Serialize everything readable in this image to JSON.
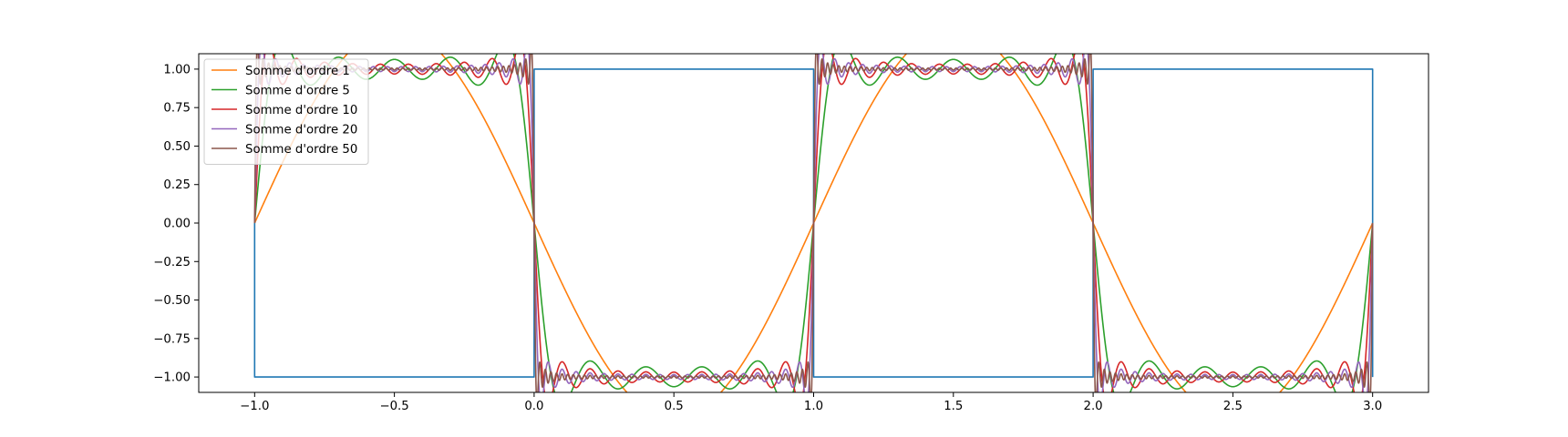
{
  "chart_data": {
    "type": "line",
    "title": "",
    "xlabel": "",
    "ylabel": "",
    "xlim": [
      -1.2,
      3.2
    ],
    "ylim": [
      -1.1,
      1.1
    ],
    "xticks": [
      -1.0,
      -0.5,
      0.0,
      0.5,
      1.0,
      1.5,
      2.0,
      2.5,
      3.0
    ],
    "xtick_labels": [
      "−1.0",
      "−0.5",
      "0.0",
      "0.5",
      "1.0",
      "1.5",
      "2.0",
      "2.5",
      "3.0"
    ],
    "yticks": [
      1.0,
      0.75,
      0.5,
      0.25,
      0.0,
      -0.25,
      -0.5,
      -0.75,
      -1.0
    ],
    "ytick_labels": [
      "1.00",
      "0.75",
      "0.50",
      "0.25",
      "0.00",
      "−0.25",
      "−0.50",
      "−0.75",
      "−1.00"
    ],
    "grid": false,
    "legend_position": "top-left",
    "x_domain": [
      -1.0,
      3.0
    ],
    "series": [
      {
        "kind": "square",
        "color": "#1f77b4",
        "points": [
          [
            -1.0,
            0.0
          ],
          [
            -1.0,
            -1.0
          ],
          [
            0.0,
            -1.0
          ],
          [
            0.0,
            1.0
          ],
          [
            1.0,
            1.0
          ],
          [
            1.0,
            -1.0
          ],
          [
            2.0,
            -1.0
          ],
          [
            2.0,
            1.0
          ],
          [
            3.0,
            1.0
          ],
          [
            3.0,
            -1.0
          ]
        ]
      },
      {
        "name": "Somme d'ordre 1",
        "kind": "fourier",
        "order": 1,
        "color": "#ff7f0e"
      },
      {
        "name": "Somme d'ordre 5",
        "kind": "fourier",
        "order": 5,
        "color": "#2ca02c"
      },
      {
        "name": "Somme d'ordre 10",
        "kind": "fourier",
        "order": 10,
        "color": "#d62728"
      },
      {
        "name": "Somme d'ordre 20",
        "kind": "fourier",
        "order": 20,
        "color": "#9467bd"
      },
      {
        "name": "Somme d'ordre 50",
        "kind": "fourier",
        "order": 50,
        "color": "#8c564b"
      }
    ]
  }
}
